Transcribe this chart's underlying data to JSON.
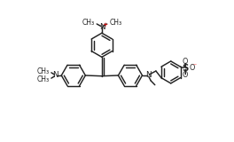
{
  "bg_color": "#ffffff",
  "line_color": "#222222",
  "bond_lw": 1.05,
  "font_size": 5.8,
  "fig_width": 2.64,
  "fig_height": 1.6,
  "xlim": [
    -0.05,
    1.05
  ],
  "ylim": [
    -0.05,
    1.05
  ]
}
